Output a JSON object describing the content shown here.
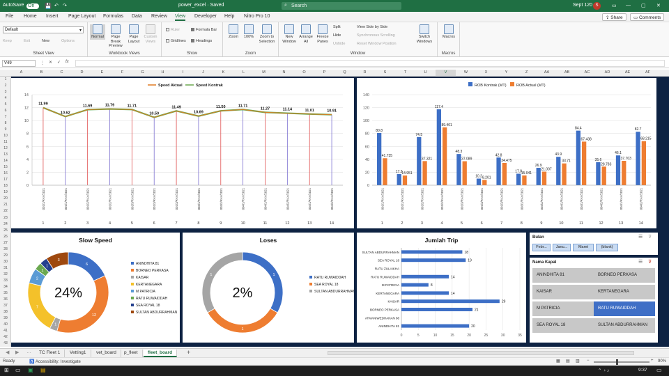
{
  "titlebar": {
    "autosave_label": "AutoSave",
    "autosave_state": "On",
    "doc_title": "power_excel · Saved",
    "search_placeholder": "Search",
    "user_name": "Sept 120",
    "user_initial": "S",
    "win_min": "—",
    "win_max": "▢",
    "win_close": "✕"
  },
  "menu": {
    "tabs": [
      "File",
      "Home",
      "Insert",
      "Page Layout",
      "Formulas",
      "Data",
      "Review",
      "View",
      "Developer",
      "Help",
      "Nitro Pro 10"
    ],
    "active": "View",
    "share": "Share",
    "comments": "Comments"
  },
  "ribbon": {
    "sheet_view": {
      "selected": "Default",
      "keep": "Keep",
      "exit": "Exit",
      "new": "New",
      "options": "Options",
      "name": "Sheet View"
    },
    "workbook_views": {
      "normal": "Normal",
      "page_break": "Page Break Preview",
      "page_layout": "Page Layout",
      "custom": "Custom Views",
      "name": "Workbook Views"
    },
    "show": {
      "ruler": "Ruler",
      "formula_bar": "Formula Bar",
      "gridlines": "Gridlines",
      "headings": "Headings",
      "name": "Show"
    },
    "zoom": {
      "zoom": "Zoom",
      "pct": "100%",
      "selection": "Zoom to Selection",
      "name": "Zoom"
    },
    "window": {
      "new": "New Window",
      "arrange": "Arrange All",
      "freeze": "Freeze Panes",
      "split": "Split",
      "hide": "Hide",
      "unhide": "Unhide",
      "side": "View Side by Side",
      "sync": "Synchronous Scrolling",
      "reset": "Reset Window Position",
      "switch": "Switch Windows",
      "name": "Window"
    },
    "macros": {
      "macros": "Macros",
      "name": "Macros"
    }
  },
  "formula": {
    "namebox": "V49",
    "fx": "fx",
    "value": ""
  },
  "columns": [
    "A",
    "B",
    "C",
    "D",
    "E",
    "F",
    "G",
    "H",
    "I",
    "J",
    "K",
    "L",
    "M",
    "N",
    "O",
    "P",
    "Q",
    "R",
    "S",
    "T",
    "U",
    "V",
    "W",
    "X",
    "Y",
    "Z",
    "AA",
    "AB",
    "AC",
    "AD",
    "AE",
    "AF"
  ],
  "rows": [
    "1",
    "2",
    "3",
    "4",
    "5",
    "6",
    "7",
    "8",
    "9",
    "10",
    "11",
    "12",
    "13",
    "14",
    "15",
    "16",
    "17",
    "18",
    "19",
    "20",
    "21",
    "22",
    "23",
    "24",
    "25",
    "26",
    "27",
    "28",
    "29",
    "30",
    "31",
    "32",
    "33",
    "34",
    "35",
    "36",
    "37",
    "38",
    "39",
    "40",
    "41",
    "42",
    "43"
  ],
  "chart_data": [
    {
      "type": "line",
      "series": [
        {
          "name": "Speed Aktual",
          "values": [
            11.99,
            10.62,
            11.69,
            11.79,
            11.71,
            10.5,
            11.49,
            10.69,
            11.5,
            11.71,
            11.27,
            11.14,
            11.01,
            10.91
          ],
          "color": "#e07b24"
        },
        {
          "name": "Speed Kontrak",
          "values": [
            11.99,
            10.62,
            11.69,
            11.79,
            11.71,
            10.5,
            11.49,
            10.69,
            11.5,
            11.71,
            11.27,
            11.14,
            11.01,
            10.91
          ],
          "color": "#6aa84f"
        }
      ],
      "data_labels": [
        "11.99",
        "10.62",
        "11.69",
        "11.79",
        "11.71",
        "10.50",
        "11.49",
        "10.69",
        "11.50",
        "11.71",
        "11.27",
        "11.14",
        "11.01",
        "10.91"
      ],
      "categories": [
        "001/1/RAY/2021",
        "001/1/RAY/2021",
        "001/2/RAY/2021",
        "001/2/RAY/2021",
        "001/3/RAY/2021",
        "001/3/RAY/2021",
        "001/3/RAY/2021",
        "003/1/RAY/2021",
        "003/2/RAY/2021",
        "004/1/RAY/2021",
        "004/1/RAY/2021",
        "004/2/RAY/2021",
        "004/1/RAY/2021",
        "004/2/RAY/2021"
      ],
      "x": [
        "1",
        "2",
        "3",
        "4",
        "5",
        "6",
        "7",
        "8",
        "9",
        "10",
        "11",
        "12",
        "13",
        "14"
      ],
      "ylim": [
        0,
        14
      ],
      "yticks": [
        "0",
        "2",
        "4",
        "6",
        "8",
        "10",
        "12",
        "14"
      ],
      "drop_line_colors": [
        "#e05050",
        "#7b6fd0"
      ],
      "legend": "top-center"
    },
    {
      "type": "bar",
      "series": [
        {
          "name": "ROB Kontrak (MT)",
          "values": [
            80.8,
            17.2,
            74.5,
            117.4,
            48.3,
            10.2,
            42.8,
            17.8,
            26.9,
            43.9,
            84.4,
            35.6,
            46.1,
            82.7
          ],
          "labels": [
            "80.8",
            "17.2",
            "74.5",
            "117.4",
            "48.3",
            "10.2",
            "42.8",
            "17.8",
            "26.9",
            "43.9",
            "84.4",
            "35.6",
            "46.1",
            "82.7"
          ],
          "color": "#3d6fc6"
        },
        {
          "name": "ROB Actual (MT)",
          "values": [
            41.735,
            14.951,
            37.321,
            89.401,
            37.089,
            8.201,
            34.475,
            15.041,
            21.007,
            33.71,
            67.438,
            28.783,
            37.703,
            68.215
          ],
          "labels": [
            "41.735",
            "14.951",
            "37.321",
            "89.401",
            "37.089",
            "8.201",
            "34.475",
            "15.041",
            "21.007",
            "33.71",
            "67.438",
            "28.783",
            "37.703",
            "68.215"
          ],
          "color": "#ee7d31"
        }
      ],
      "categories": [
        "001/1/RAY/2021",
        "001/1/RAY/2021",
        "001/2/RAY/2021",
        "001/2/RAY/2021",
        "001/3/RAY/2021",
        "001/3/RAY/2021",
        "001/3/RAY/2021",
        "003/1/RAY/2021",
        "003/2/RAY/2021",
        "004/1/RAY/2021",
        "004/1/RAY/2021",
        "004/2/RAY/2021",
        "004/1/RAY/2021",
        "004/2/RAY/2021"
      ],
      "x": [
        "1",
        "2",
        "3",
        "4",
        "5",
        "6",
        "7",
        "8",
        "9",
        "10",
        "11",
        "12",
        "13",
        "14"
      ],
      "ylim": [
        0,
        140
      ],
      "yticks": [
        "0",
        "20",
        "40",
        "60",
        "80",
        "100",
        "120",
        "140"
      ],
      "legend": "top-center"
    },
    {
      "type": "pie",
      "title": "Slow Speed",
      "center_label": "24%",
      "slices": [
        {
          "name": "ANINDHITA 81",
          "value": 6,
          "label": "6",
          "color": "#3d6fc6"
        },
        {
          "name": "BORNEO PERKASA",
          "value": 12,
          "label": "12",
          "color": "#ee7d31"
        },
        {
          "name": "KAISAR",
          "value": 1,
          "label": "1",
          "color": "#a5a5a5"
        },
        {
          "name": "KERTANEGARA",
          "value": 7,
          "label": "7",
          "color": "#f4c12a"
        },
        {
          "name": "M PATRICIA",
          "value": 2,
          "label": "2",
          "color": "#5b9bd5"
        },
        {
          "name": "RATU RUWAIDDAH",
          "value": 1,
          "label": "1",
          "color": "#6aa84f"
        },
        {
          "name": "SEA ROYAL 18",
          "value": 1,
          "label": "1",
          "color": "#24408e"
        },
        {
          "name": "SULTAN ABDURRAHMAN",
          "value": 3,
          "label": "3",
          "color": "#9e480e"
        }
      ],
      "legend": "right"
    },
    {
      "type": "pie",
      "title": "Loses",
      "center_label": "2%",
      "slices": [
        {
          "name": "RATU RUWAIDDAH",
          "value": 1,
          "label": "1",
          "color": "#3d6fc6"
        },
        {
          "name": "SEA ROYAL 18",
          "value": 1,
          "label": "1",
          "color": "#ee7d31"
        },
        {
          "name": "SULTAN ABDURRAHMAN",
          "value": 1,
          "label": "1",
          "color": "#a5a5a5"
        }
      ],
      "legend": "right"
    },
    {
      "type": "bar",
      "orientation": "horizontal",
      "title": "Jumlah Trip",
      "categories": [
        "SULTAN ABDURRAHMAN",
        "SEA ROYAL 18",
        "RATU ZULAIKHA",
        "RATU RUWAIDDAH",
        "M PATRICIA",
        "KERTANEGARA",
        "KAISAR",
        "BORNEO PERKASA",
        "ATMANIWEDHANAN 88",
        "ANINDHITA 81"
      ],
      "values": [
        18,
        19,
        null,
        14,
        8,
        14,
        29,
        21,
        null,
        20
      ],
      "labels": [
        "18",
        "19",
        "",
        "14",
        "8",
        "14",
        "29",
        "21",
        "",
        "20"
      ],
      "color": "#3d6fc6",
      "xlim": [
        0,
        35
      ],
      "xticks": [
        "0",
        "5",
        "10",
        "15",
        "20",
        "25",
        "30",
        "35"
      ]
    }
  ],
  "slicers": {
    "bulan": {
      "title": "Bulan",
      "items": [
        "Febr...",
        "Janu...",
        "Maret",
        "(blank)"
      ]
    },
    "kapal": {
      "title": "Nama Kapal",
      "items": [
        "ANINDHITA 81",
        "BORNEO PERKASA",
        "KAISAR",
        "KERTANEGARA",
        "M PATRICIA",
        "RATU RUWAIDDAH",
        "SEA ROYAL 18",
        "SULTAN ABDURRAHMAN"
      ],
      "selected": "RATU RUWAIDDAH"
    }
  },
  "sheets": {
    "tabs": [
      "TC Fleet 1",
      "Vetting1",
      "vet_board",
      "p_fleet",
      "fleet_board"
    ],
    "active": "fleet_board",
    "add": "+"
  },
  "status": {
    "ready": "Ready",
    "accessibility": "Accessibility: Investigate",
    "zoom": "90%"
  },
  "taskbar": {
    "time": "9:37"
  }
}
